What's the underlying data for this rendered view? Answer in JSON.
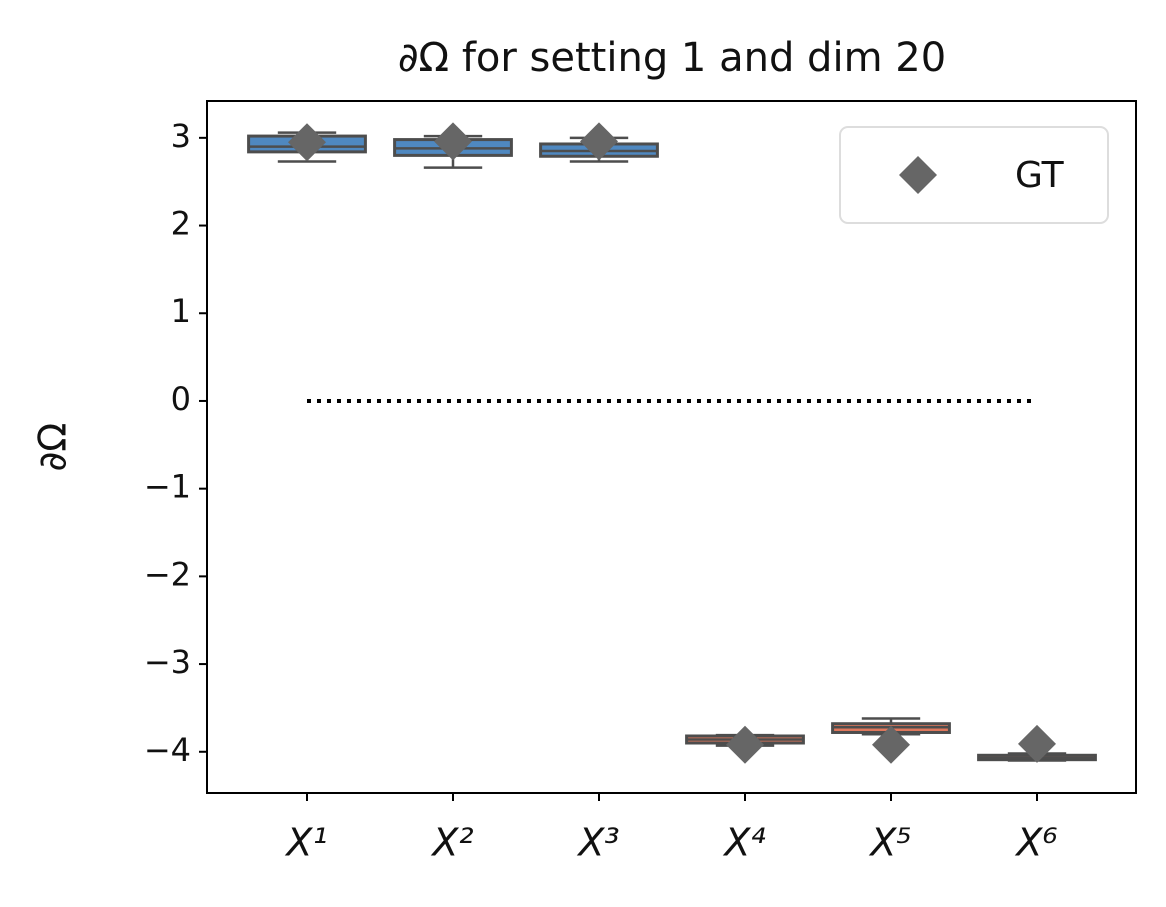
{
  "chart_data": {
    "type": "box",
    "title": "∂Ω for setting 1 and dim 20",
    "ylabel": "∂Ω",
    "categories": [
      "X¹",
      "X²",
      "X³",
      "X⁴",
      "X⁵",
      "X⁶"
    ],
    "boxes": [
      {
        "min": 2.73,
        "q1": 2.84,
        "median": 2.9,
        "q3": 3.02,
        "max": 3.06,
        "color": "#4f88c0"
      },
      {
        "min": 2.66,
        "q1": 2.8,
        "median": 2.88,
        "q3": 2.98,
        "max": 3.02,
        "color": "#4f88c0"
      },
      {
        "min": 2.73,
        "q1": 2.79,
        "median": 2.85,
        "q3": 2.93,
        "max": 3.0,
        "color": "#4f88c0"
      },
      {
        "min": -3.93,
        "q1": -3.9,
        "median": -3.86,
        "q3": -3.82,
        "max": -3.81,
        "color": "#e0785c"
      },
      {
        "min": -3.8,
        "q1": -3.78,
        "median": -3.72,
        "q3": -3.68,
        "max": -3.62,
        "color": "#e0785c"
      },
      {
        "min": -4.1,
        "q1": -4.09,
        "median": -4.07,
        "q3": -4.04,
        "max": -4.02,
        "color": "#e0785c"
      }
    ],
    "series": [
      {
        "name": "GT",
        "color": "#666666",
        "values": [
          2.95,
          2.96,
          2.96,
          -3.92,
          -3.92,
          -3.91
        ]
      }
    ],
    "reference_line": 0,
    "ylim": [
      -4.47,
      3.42
    ],
    "yticks": [
      {
        "value": -4,
        "label": "−4"
      },
      {
        "value": -3,
        "label": "−3"
      },
      {
        "value": -2,
        "label": "−2"
      },
      {
        "value": -1,
        "label": "−1"
      },
      0,
      1,
      2,
      3
    ],
    "legend": "upper right"
  }
}
